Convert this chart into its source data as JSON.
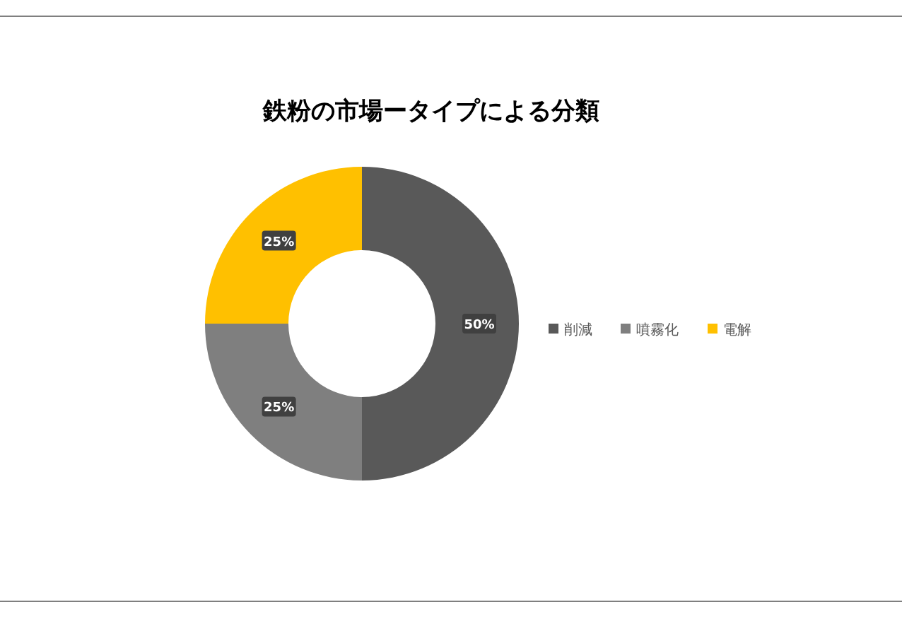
{
  "chart_data": {
    "type": "donut",
    "title": "鉄粉の市場ータイプによる分類",
    "categories": [
      "削減",
      "噴霧化",
      "電解"
    ],
    "values": [
      50,
      25,
      25
    ],
    "colors": [
      "#595959",
      "#7f7f7f",
      "#ffc000"
    ],
    "value_labels": [
      "50%",
      "25%",
      "25%"
    ],
    "legend": "right"
  }
}
